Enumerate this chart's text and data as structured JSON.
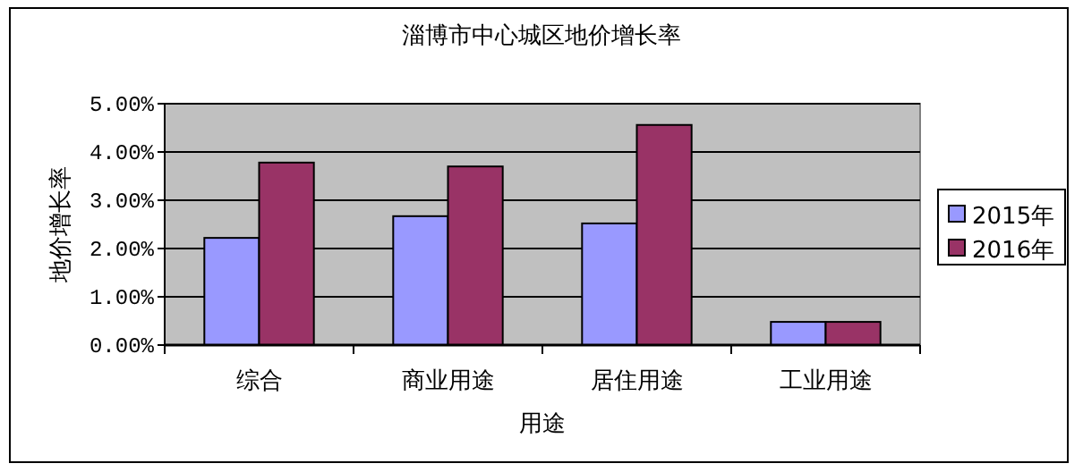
{
  "chart_data": {
    "type": "bar",
    "title": "淄博市中心城区地价增长率",
    "xlabel": "用途",
    "ylabel": "地价增长率",
    "categories": [
      "综合",
      "商业用途",
      "居住用途",
      "工业用途"
    ],
    "series": [
      {
        "name": "2015年",
        "color": "#9999ff",
        "values": [
          2.22,
          2.67,
          2.52,
          0.48
        ]
      },
      {
        "name": "2016年",
        "color": "#993366",
        "values": [
          3.78,
          3.7,
          4.56,
          0.48
        ]
      }
    ],
    "ylim": [
      0,
      5
    ],
    "yticks": [
      {
        "value": 0,
        "label": "0.00%"
      },
      {
        "value": 1,
        "label": "1.00%"
      },
      {
        "value": 2,
        "label": "2.00%"
      },
      {
        "value": 3,
        "label": "3.00%"
      },
      {
        "value": 4,
        "label": "4.00%"
      },
      {
        "value": 5,
        "label": "5.00%"
      }
    ],
    "grid": "y",
    "legend": "right"
  }
}
